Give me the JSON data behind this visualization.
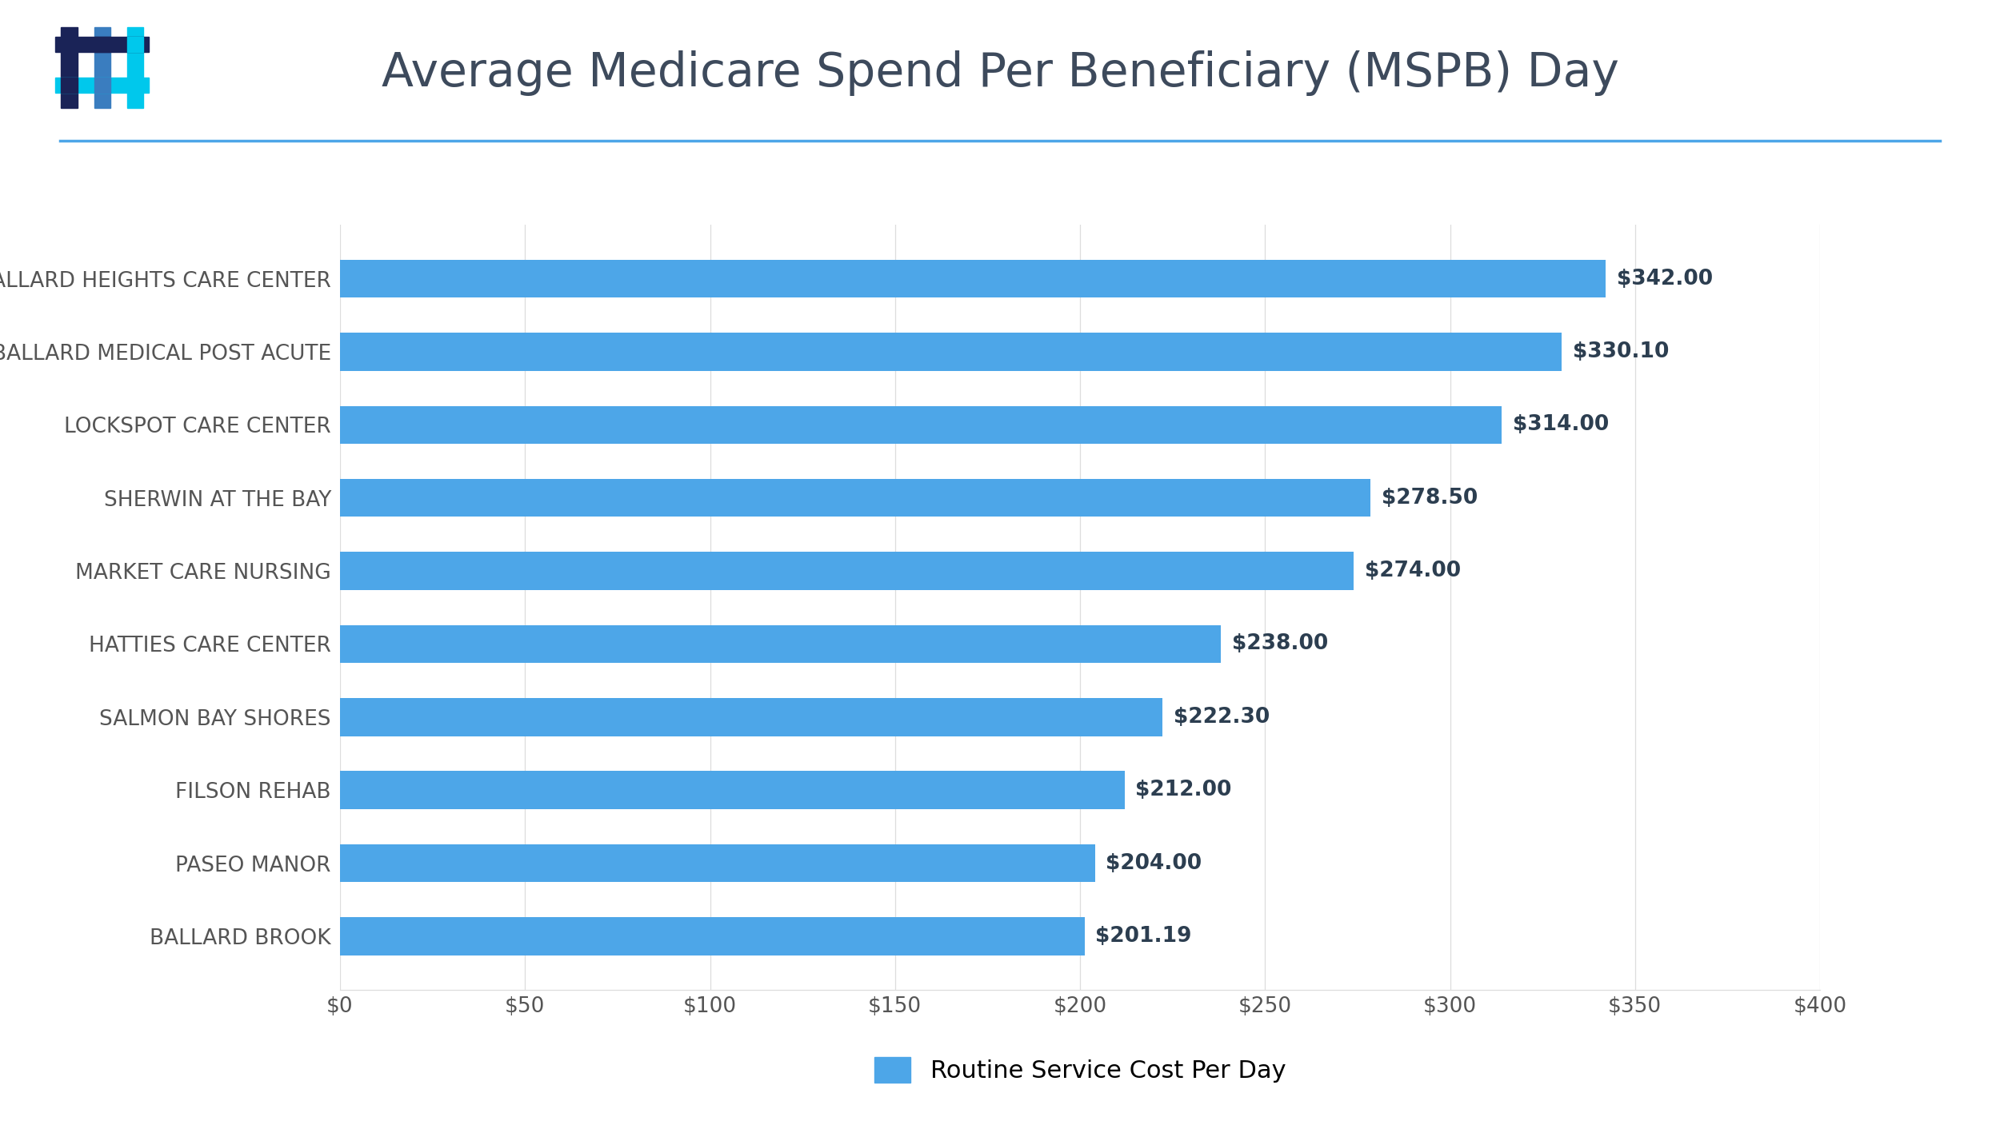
{
  "title": "Average Medicare Spend Per Beneficiary (MSPB) Day",
  "categories": [
    "BALLARD BROOK",
    "PASEO MANOR",
    "FILSON REHAB",
    "SALMON BAY SHORES",
    "HATTIES CARE CENTER",
    "MARKET CARE NURSING",
    "SHERWIN AT THE BAY",
    "LOCKSPOT CARE CENTER",
    "BALLARD MEDICAL POST ACUTE",
    "BALLARD HEIGHTS CARE CENTER"
  ],
  "values": [
    201.19,
    204.0,
    212.0,
    222.3,
    238.0,
    274.0,
    278.5,
    314.0,
    330.1,
    342.0
  ],
  "labels": [
    "$201.19",
    "$204.00",
    "$212.00",
    "$222.30",
    "$238.00",
    "$274.00",
    "$278.50",
    "$314.00",
    "$330.10",
    "$342.00"
  ],
  "bar_color": "#4DA6E8",
  "title_color": "#3D4A5C",
  "label_color": "#2C3E50",
  "category_color": "#555555",
  "tick_color": "#555555",
  "background_color": "#FFFFFF",
  "plot_bg_color": "#FFFFFF",
  "xlim": [
    0,
    400
  ],
  "xticks": [
    0,
    50,
    100,
    150,
    200,
    250,
    300,
    350,
    400
  ],
  "xtick_labels": [
    "$0",
    "$50",
    "$100",
    "$150",
    "$200",
    "$250",
    "$300",
    "$350",
    "$400"
  ],
  "legend_label": "Routine Service Cost Per Day",
  "grid_color": "#DDDDDD",
  "separator_color": "#4DA6E8",
  "title_fontsize": 42,
  "category_fontsize": 19,
  "label_fontsize": 19,
  "tick_fontsize": 19,
  "legend_fontsize": 22,
  "bar_height": 0.52,
  "logo_colors": [
    [
      "#1A2357",
      "#1A2357",
      "#3A7DBF",
      "#00C0E8"
    ],
    [
      "#1A2357",
      "#1A2357",
      "#3A7DBF",
      "#00C0E8"
    ],
    [
      "#3A7DBF",
      "#3A7DBF",
      "#3A7DBF",
      "#3A7DBF"
    ],
    [
      "#1A2357",
      "#1A2357",
      "#3A7DBF",
      "#00C0E8"
    ]
  ]
}
